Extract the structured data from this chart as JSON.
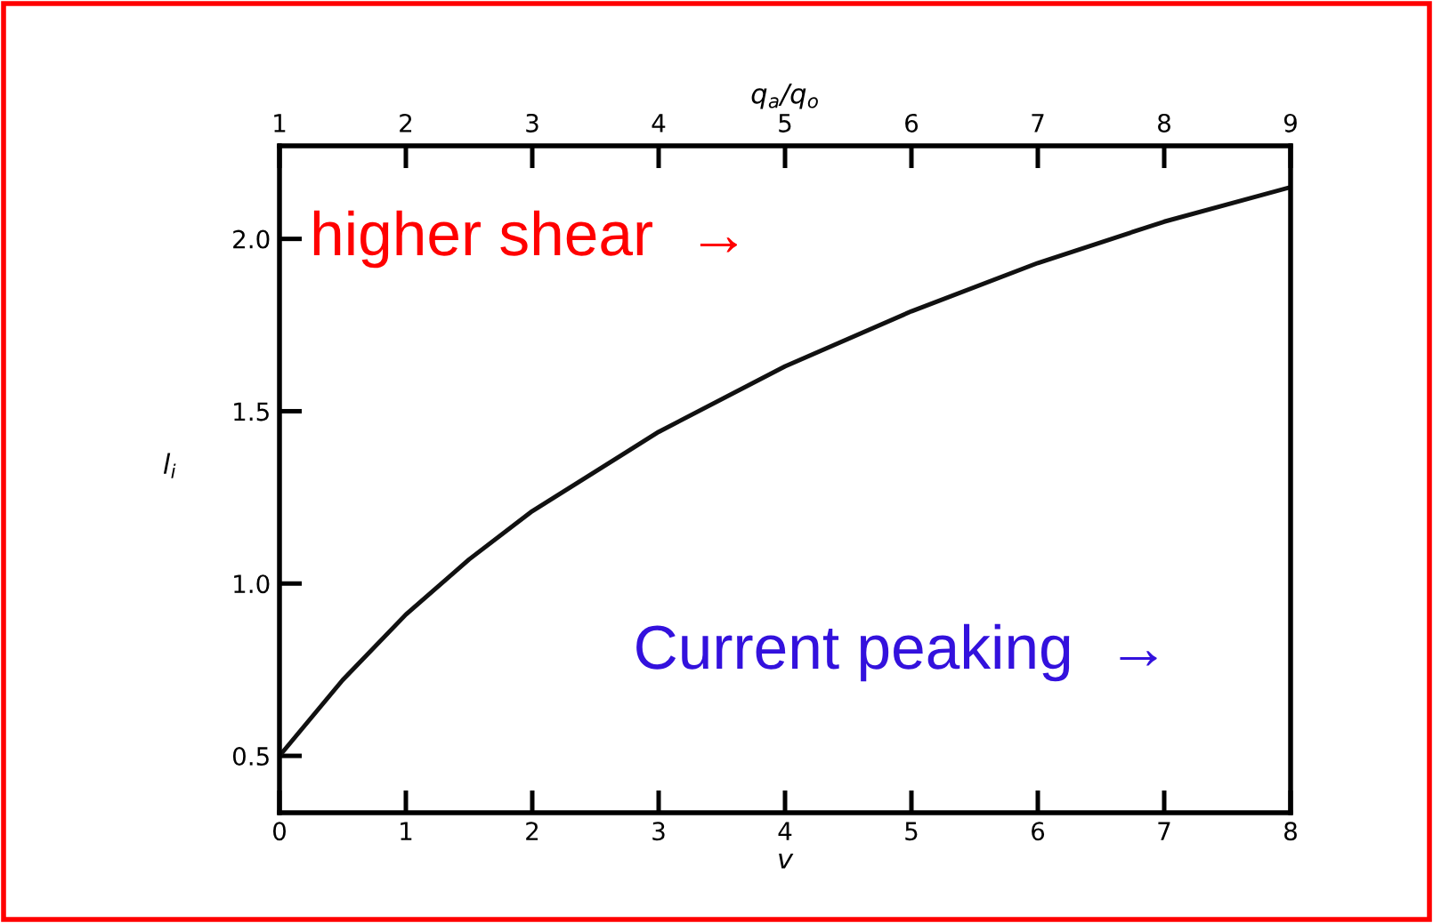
{
  "chart_data": {
    "type": "line",
    "xlabel": "v",
    "ylabel": "l$_{i}$",
    "x2label": "q$_{a}$/q$_{o}$",
    "x": [
      0,
      0.5,
      1,
      1.5,
      2,
      3,
      4,
      5,
      6,
      7,
      8
    ],
    "series": [
      {
        "color": "#111111",
        "values": [
          0.5,
          0.72,
          0.91,
          1.07,
          1.21,
          1.44,
          1.63,
          1.79,
          1.93,
          2.05,
          2.15
        ]
      }
    ],
    "xlim": [
      0,
      8
    ],
    "xticks": [
      0,
      1,
      2,
      3,
      4,
      5,
      6,
      7,
      8
    ],
    "x2lim": [
      1,
      9
    ],
    "x2ticks": [
      1,
      2,
      3,
      4,
      5,
      6,
      7,
      8,
      9
    ],
    "ylim": [
      0.335,
      2.27
    ],
    "yticks": [
      {
        "value": 0.5,
        "label": "0.5"
      },
      {
        "value": 1.0,
        "label": "1.0"
      },
      {
        "value": 1.5,
        "label": "1.5"
      },
      {
        "value": 2.0,
        "label": "2.0"
      }
    ],
    "annotations": [
      "higher shear  →",
      "Current peaking  →"
    ],
    "grid": false,
    "legend": false,
    "marker": "none",
    "line_style": "solid"
  }
}
